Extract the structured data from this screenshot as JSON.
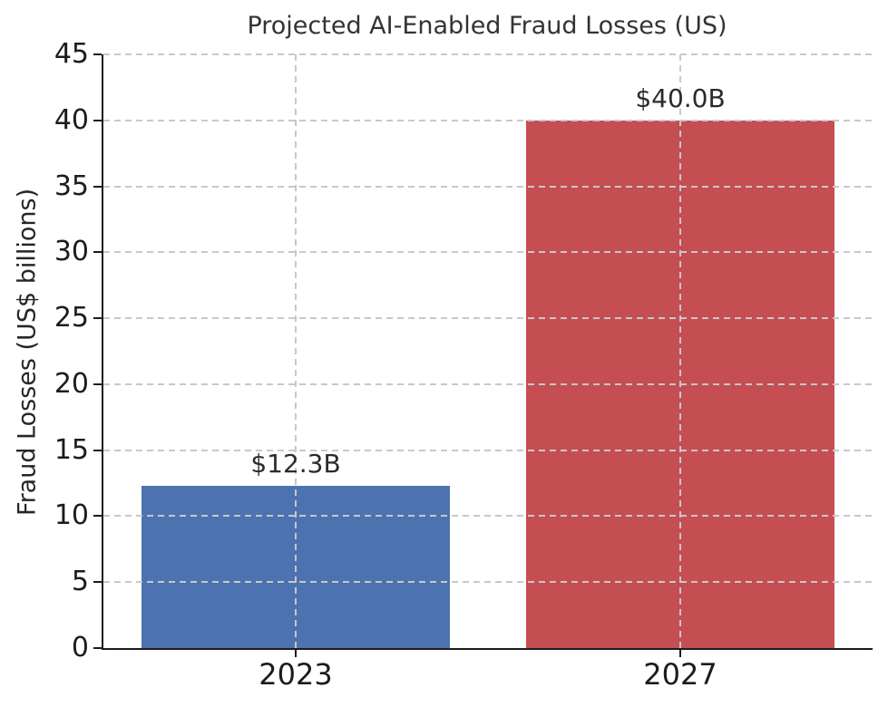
{
  "chart_data": {
    "type": "bar",
    "title": "Projected AI-Enabled Fraud Losses (US)",
    "xlabel": "",
    "ylabel": "Fraud Losses (US$ billions)",
    "categories": [
      "2023",
      "2027"
    ],
    "values": [
      12.3,
      40.0
    ],
    "bar_labels": [
      "$12.3B",
      "$40.0B"
    ],
    "bar_colors": [
      "#4C72B0",
      "#C44E52"
    ],
    "ylim": [
      0,
      45
    ],
    "yticks": [
      0,
      5,
      10,
      15,
      20,
      25,
      30,
      35,
      40,
      45
    ],
    "grid": true,
    "grid_style": "dashed",
    "grid_color": "#c8c8c8",
    "legend_position": "none"
  },
  "colors": {
    "text": "#262626",
    "spine": "#1c1c1c",
    "background": "#ffffff"
  }
}
